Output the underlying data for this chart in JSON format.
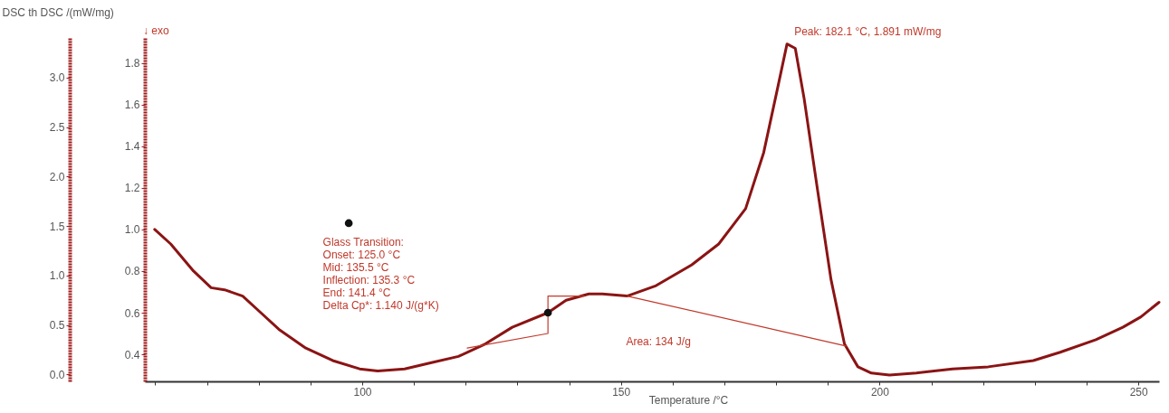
{
  "chart_data": {
    "type": "line",
    "xlabel": "Temperature /°C",
    "y2label": "DSC th DSC /(mW/mg)",
    "xlim": [
      58,
      254
    ],
    "ylim": [
      0.27,
      1.92
    ],
    "y2lim": [
      -0.07,
      3.4
    ],
    "xticks": [
      {
        "value": 60,
        "label": null
      },
      {
        "value": 70,
        "label": null
      },
      {
        "value": 80,
        "label": null
      },
      {
        "value": 90,
        "label": null
      },
      100,
      {
        "value": 110,
        "label": null
      },
      {
        "value": 120,
        "label": null
      },
      {
        "value": 130,
        "label": null
      },
      {
        "value": 140,
        "label": null
      },
      150,
      {
        "value": 160,
        "label": null
      },
      {
        "value": 170,
        "label": null
      },
      {
        "value": 180,
        "label": null
      },
      {
        "value": 190,
        "label": null
      },
      200,
      {
        "value": 210,
        "label": null
      },
      {
        "value": 220,
        "label": null
      },
      {
        "value": 230,
        "label": null
      },
      {
        "value": 240,
        "label": null
      },
      250
    ],
    "yticks": [
      0.4,
      0.6,
      0.8,
      {
        "value": 1,
        "label": "1.0"
      },
      1.2,
      1.4,
      1.6,
      1.8
    ],
    "y2ticks": [
      {
        "value": 0,
        "label": "0.0"
      },
      0.5,
      {
        "value": 1,
        "label": "1.0"
      },
      1.5,
      {
        "value": 2,
        "label": "2.0"
      },
      2.5,
      {
        "value": 3,
        "label": "3.0"
      }
    ],
    "grid": false,
    "series": [
      {
        "color": "#8b1414",
        "x": [
          59.9,
          63,
          67.4,
          70.8,
          73.4,
          76.9,
          80.4,
          83.9,
          89.1,
          94.3,
          99.5,
          103,
          108.2,
          113.4,
          118.6,
          123.8,
          129,
          135.9,
          139.4,
          143.8,
          146.4,
          151.2,
          156.8,
          163.7,
          168.9,
          174.1,
          177.6,
          180.2,
          182.1,
          183.7,
          185.4,
          188,
          190.6,
          193.2,
          195.8,
          198.4,
          201.9,
          207.1,
          214.1,
          221,
          229.7,
          234.9,
          241.8,
          247,
          250.5,
          254
        ],
        "values": [
          1.0,
          0.93,
          0.8,
          0.72,
          0.71,
          0.68,
          0.6,
          0.52,
          0.43,
          0.37,
          0.33,
          0.32,
          0.33,
          0.36,
          0.39,
          0.45,
          0.53,
          0.6,
          0.66,
          0.69,
          0.69,
          0.68,
          0.73,
          0.83,
          0.93,
          1.1,
          1.37,
          1.67,
          1.891,
          1.87,
          1.63,
          1.19,
          0.76,
          0.45,
          0.34,
          0.31,
          0.3,
          0.31,
          0.33,
          0.34,
          0.37,
          0.41,
          0.47,
          0.53,
          0.58,
          0.65
        ]
      },
      {
        "type": "line",
        "color": "#c0392b",
        "x": [
          151.2,
          193.5
        ],
        "values": [
          0.68,
          0.44
        ]
      },
      {
        "type": "line",
        "color": "#c0392b",
        "x": [
          120.3,
          135.9,
          135.9,
          142.9
        ],
        "values": [
          0.43,
          0.5,
          0.68,
          0.68
        ]
      },
      {
        "type": "scatter",
        "color": "#111111",
        "x": [
          97.4,
          135.9
        ],
        "values": [
          1.03,
          0.6
        ]
      }
    ],
    "annotations": [
      "↓ exo",
      "Glass Transition:",
      "Onset:      125.0 °C",
      "Mid:         135.5 °C",
      "Inflection: 135.3 °C",
      "End:         141.4 °C",
      "Delta Cp*:    1.140 J/(g*K)",
      "Area: 134 J/g",
      {
        "text": "Peak: 182.1 °C, 1.891 mW/mg",
        "x": 182.1,
        "y": 1.891
      }
    ]
  }
}
